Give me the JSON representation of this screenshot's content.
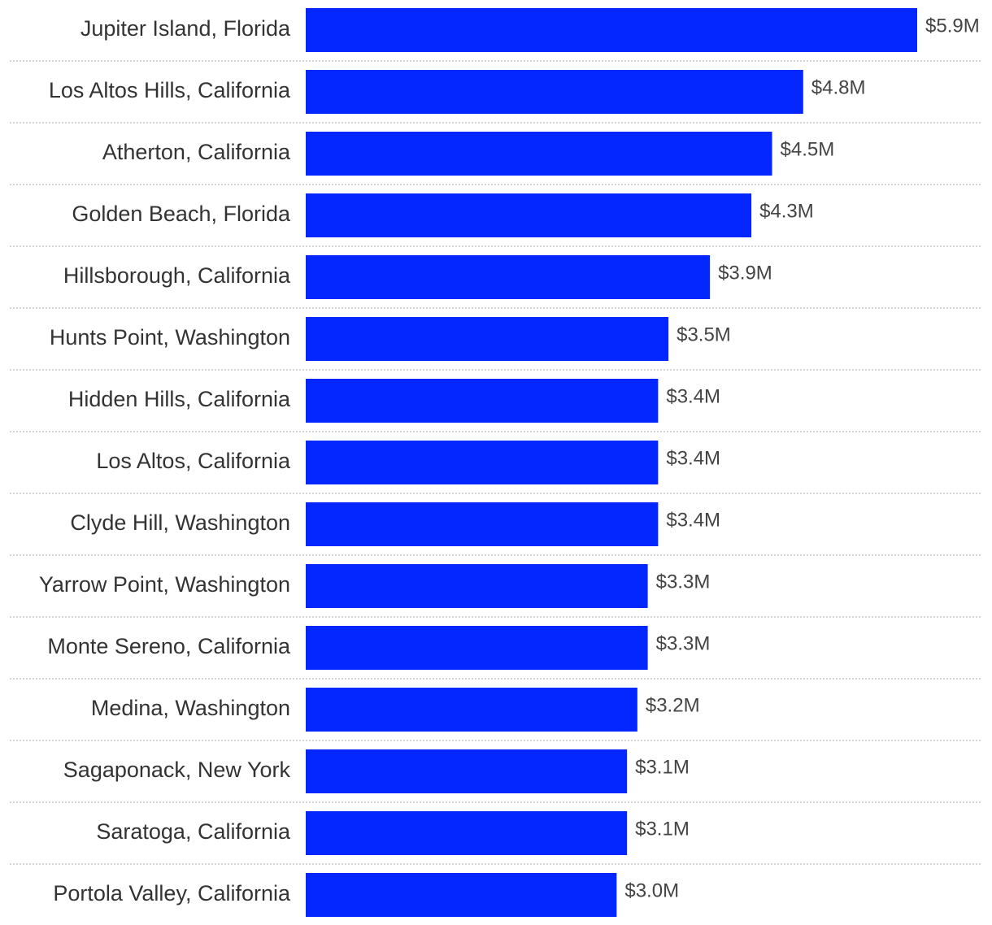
{
  "chart_data": {
    "type": "bar",
    "orientation": "horizontal",
    "color": "#0527ff",
    "categories": [
      "Jupiter Island, Florida",
      "Los Altos Hills, California",
      "Atherton, California",
      "Golden Beach, Florida",
      "Hillsborough, California",
      "Hunts Point, Washington",
      "Hidden Hills, California",
      "Los Altos, California",
      "Clyde Hill, Washington",
      "Yarrow Point, Washington",
      "Monte Sereno, California",
      "Medina, Washington",
      "Sagaponack, New York",
      "Saratoga, California",
      "Portola Valley, California"
    ],
    "values": [
      5.9,
      4.8,
      4.5,
      4.3,
      3.9,
      3.5,
      3.4,
      3.4,
      3.4,
      3.3,
      3.3,
      3.2,
      3.1,
      3.1,
      3.0
    ],
    "value_labels": [
      "$5.9M",
      "$4.8M",
      "$4.5M",
      "$4.3M",
      "$3.9M",
      "$3.5M",
      "$3.4M",
      "$3.4M",
      "$3.4M",
      "$3.3M",
      "$3.3M",
      "$3.2M",
      "$3.1M",
      "$3.1M",
      "$3.0M"
    ]
  }
}
